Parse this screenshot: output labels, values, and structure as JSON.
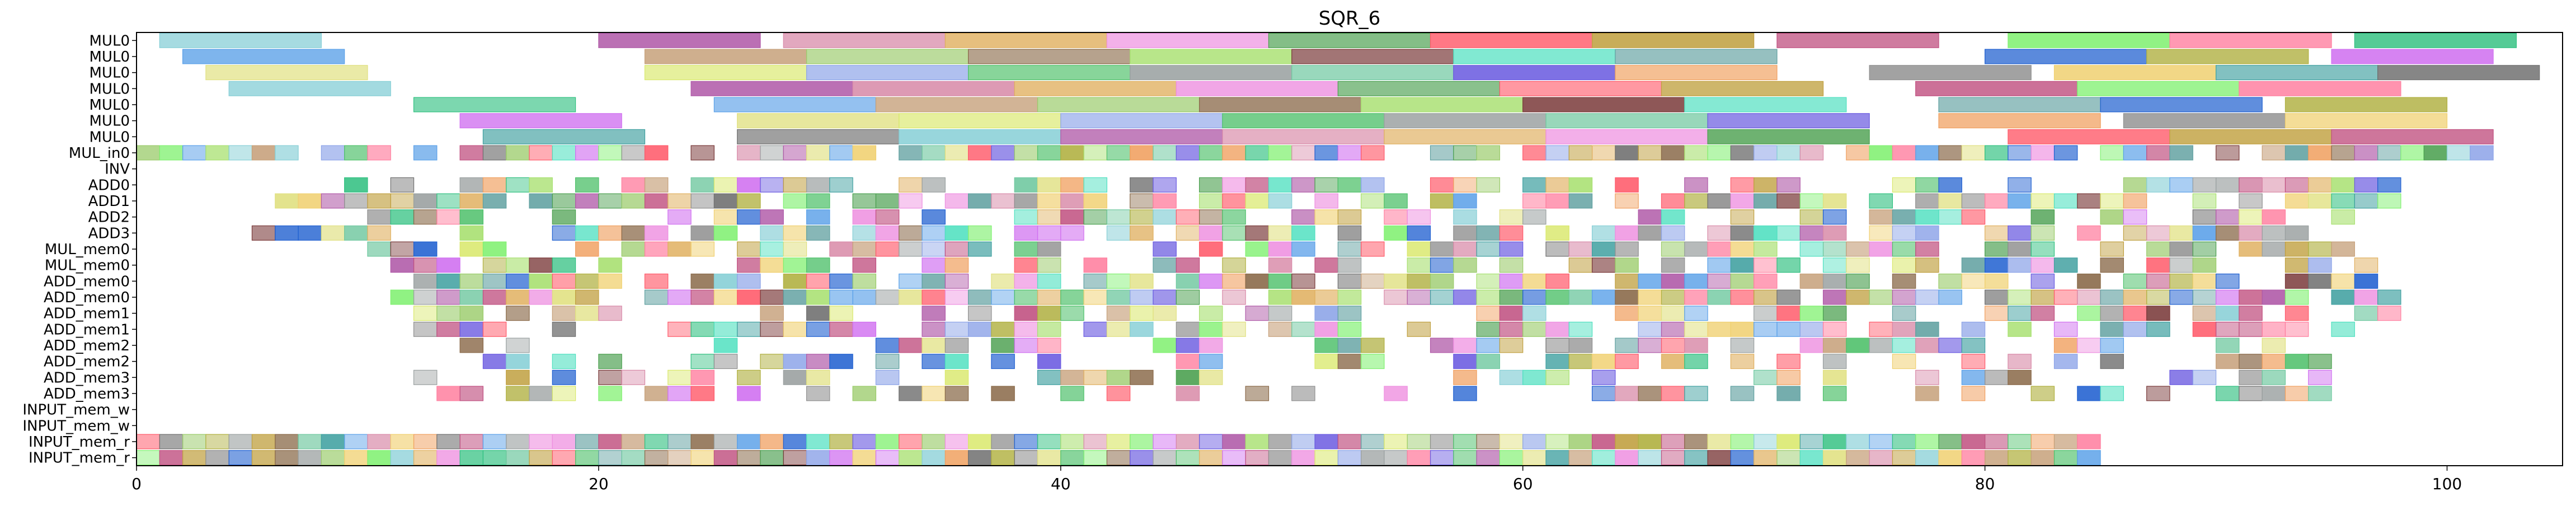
{
  "chart_data": {
    "type": "gantt",
    "title": "SQR_6",
    "xlabel": "",
    "ylabel": "",
    "xlim": [
      0,
      105
    ],
    "x_ticks": [
      0,
      20,
      40,
      60,
      80,
      100
    ],
    "grid": false,
    "legend": "none",
    "rows": [
      "MUL0",
      "MUL0",
      "MUL0",
      "MUL0",
      "MUL0",
      "MUL0",
      "MUL0",
      "MUL_in0",
      "INV",
      "ADD0",
      "ADD1",
      "ADD2",
      "ADD3",
      "MUL_mem0",
      "MUL_mem0",
      "ADD_mem0",
      "ADD_mem0",
      "ADD_mem1",
      "ADD_mem1",
      "ADD_mem2",
      "ADD_mem2",
      "ADD_mem3",
      "ADD_mem3",
      "INPUT_mem_w",
      "INPUT_mem_w",
      "INPUT_mem_r",
      "INPUT_mem_r"
    ],
    "long_tasks": [
      [
        [
          1,
          8
        ],
        [
          20,
          27
        ],
        [
          28,
          35
        ],
        [
          35,
          42
        ],
        [
          42,
          49
        ],
        [
          49,
          56
        ],
        [
          56,
          63
        ],
        [
          63,
          70
        ],
        [
          71,
          78
        ],
        [
          81,
          88
        ],
        [
          88,
          95
        ],
        [
          96,
          103
        ]
      ],
      [
        [
          2,
          9
        ],
        [
          22,
          29
        ],
        [
          29,
          36
        ],
        [
          36,
          43
        ],
        [
          43,
          50
        ],
        [
          50,
          57
        ],
        [
          57,
          64
        ],
        [
          64,
          71
        ],
        [
          80,
          87
        ],
        [
          87,
          94
        ],
        [
          95,
          102
        ]
      ],
      [
        [
          3,
          10
        ],
        [
          22,
          29
        ],
        [
          29,
          36
        ],
        [
          36,
          43
        ],
        [
          43,
          50
        ],
        [
          50,
          57
        ],
        [
          57,
          64
        ],
        [
          64,
          71
        ],
        [
          75,
          82
        ],
        [
          83,
          90
        ],
        [
          90,
          97
        ],
        [
          97,
          104
        ]
      ],
      [
        [
          4,
          11
        ],
        [
          24,
          31
        ],
        [
          31,
          38
        ],
        [
          38,
          45
        ],
        [
          45,
          52
        ],
        [
          52,
          59
        ],
        [
          59,
          66
        ],
        [
          66,
          73
        ],
        [
          77,
          84
        ],
        [
          84,
          91
        ],
        [
          91,
          98
        ]
      ],
      [
        [
          12,
          19
        ],
        [
          25,
          32
        ],
        [
          32,
          39
        ],
        [
          39,
          46
        ],
        [
          46,
          53
        ],
        [
          53,
          60
        ],
        [
          60,
          67
        ],
        [
          67,
          74
        ],
        [
          78,
          85
        ],
        [
          85,
          92
        ],
        [
          93,
          100
        ]
      ],
      [
        [
          14,
          21
        ],
        [
          26,
          33
        ],
        [
          33,
          40
        ],
        [
          40,
          47
        ],
        [
          47,
          54
        ],
        [
          54,
          61
        ],
        [
          61,
          68
        ],
        [
          68,
          75
        ],
        [
          78,
          85
        ],
        [
          86,
          93
        ],
        [
          93,
          100
        ]
      ],
      [
        [
          15,
          22
        ],
        [
          26,
          33
        ],
        [
          33,
          40
        ],
        [
          40,
          47
        ],
        [
          47,
          54
        ],
        [
          54,
          61
        ],
        [
          61,
          68
        ],
        [
          68,
          75
        ],
        [
          81,
          88
        ],
        [
          88,
          95
        ],
        [
          95,
          102
        ]
      ]
    ],
    "short_rows": {
      "7": {
        "start": 0,
        "end": 102,
        "density": 0.82
      },
      "9": {
        "start": 8,
        "end": 98,
        "density": 0.68
      },
      "10": {
        "start": 6,
        "end": 98,
        "density": 0.72
      },
      "11": {
        "start": 10,
        "end": 96,
        "density": 0.62
      },
      "12": {
        "start": 5,
        "end": 95,
        "density": 0.55
      },
      "13": {
        "start": 10,
        "end": 97,
        "density": 0.65
      },
      "14": {
        "start": 9,
        "end": 97,
        "density": 0.6
      },
      "15": {
        "start": 12,
        "end": 97,
        "density": 0.82
      },
      "16": {
        "start": 11,
        "end": 98,
        "density": 0.85
      },
      "17": {
        "start": 11,
        "end": 98,
        "density": 0.55
      },
      "18": {
        "start": 11,
        "end": 97,
        "density": 0.6
      },
      "19": {
        "start": 12,
        "end": 96,
        "density": 0.55
      },
      "20": {
        "start": 12,
        "end": 97,
        "density": 0.55
      },
      "21": {
        "start": 12,
        "end": 95,
        "density": 0.45
      },
      "22": {
        "start": 13,
        "end": 96,
        "density": 0.5
      },
      "25": {
        "start": 0,
        "end": 85,
        "density": 1.0
      },
      "26": {
        "start": 0,
        "end": 85,
        "density": 1.0
      }
    },
    "palette": [
      "#87cfd6",
      "#5aa0e8",
      "#d9e86b",
      "#b05aa8",
      "#c6a07a",
      "#8da4e8",
      "#d88aa8",
      "#9acb6a",
      "#4ec06a",
      "#e0b060",
      "#8a6a4a",
      "#9aa0a0",
      "#ee8fe0",
      "#a8e070",
      "#70c8a0",
      "#4ca050",
      "#7a3a3a",
      "#6a5ae0",
      "#ff5a6a",
      "#50e0c0",
      "#f0a060",
      "#c0a040",
      "#60a0a0",
      "#909090",
      "#c05080",
      "#2060d0",
      "#f0d070",
      "#80f070",
      "#b0b040",
      "#40a0a0",
      "#ff80a0",
      "#d070f0",
      "#707070",
      "#30c080",
      "#e0e080"
    ]
  }
}
